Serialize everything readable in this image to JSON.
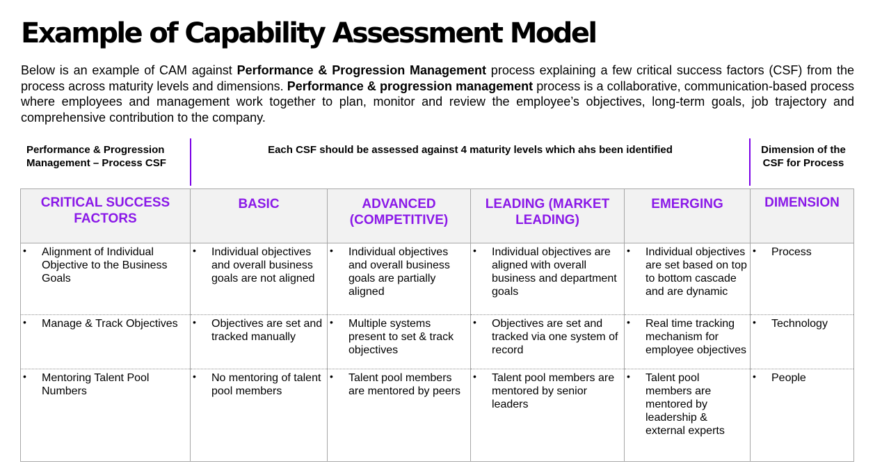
{
  "title": "Example of Capability Assessment Model",
  "intro": {
    "p1": "Below is an example of CAM against ",
    "b1": "Performance & Progression Management",
    "p2": " process explaining a few critical success factors (CSF) from the process across maturity levels and dimensions. ",
    "b2": "Performance & progression management",
    "p3": " process is a collaborative, communication-based process where employees and management work together to plan, monitor and review the employee’s objectives, long-term goals, job trajectory and comprehensive contribution to the company."
  },
  "headers": {
    "left": "Performance & Progression Management – Process CSF",
    "middle": "Each CSF  should be assessed against 4 maturity levels which ahs been identified",
    "right": "Dimension of the CSF for Process"
  },
  "columns": {
    "csf": "CRITICAL SUCCESS FACTORS",
    "basic": "BASIC",
    "advanced": "ADVANCED (COMPETITIVE)",
    "leading": "LEADING (MARKET LEADING)",
    "emerging": "EMERGING",
    "dimension": "DIMENSION"
  },
  "rows": [
    {
      "csf": "Alignment of Individual Objective to the Business Goals",
      "basic": "Individual objectives and overall business goals are not aligned",
      "advanced": "Individual objectives and overall business goals are partially aligned",
      "leading": "Individual objectives are aligned with overall business and department goals",
      "emerging": "Individual objectives are set based on top to bottom cascade and are dynamic",
      "dimension": "Process"
    },
    {
      "csf": "Manage & Track Objectives",
      "basic": "Objectives are set and tracked manually",
      "advanced": "Multiple systems present to set & track objectives",
      "leading": "Objectives are set and tracked via one system of record",
      "emerging": "Real time tracking mechanism for employee objectives",
      "dimension": "Technology"
    },
    {
      "csf": "Mentoring Talent Pool Numbers",
      "basic": "No mentoring of talent pool members",
      "advanced": "Talent pool members are mentored by peers",
      "leading": "Talent pool members are mentored by senior leaders",
      "emerging": "Talent pool members are mentored by leadership & external experts",
      "dimension": "People"
    }
  ]
}
